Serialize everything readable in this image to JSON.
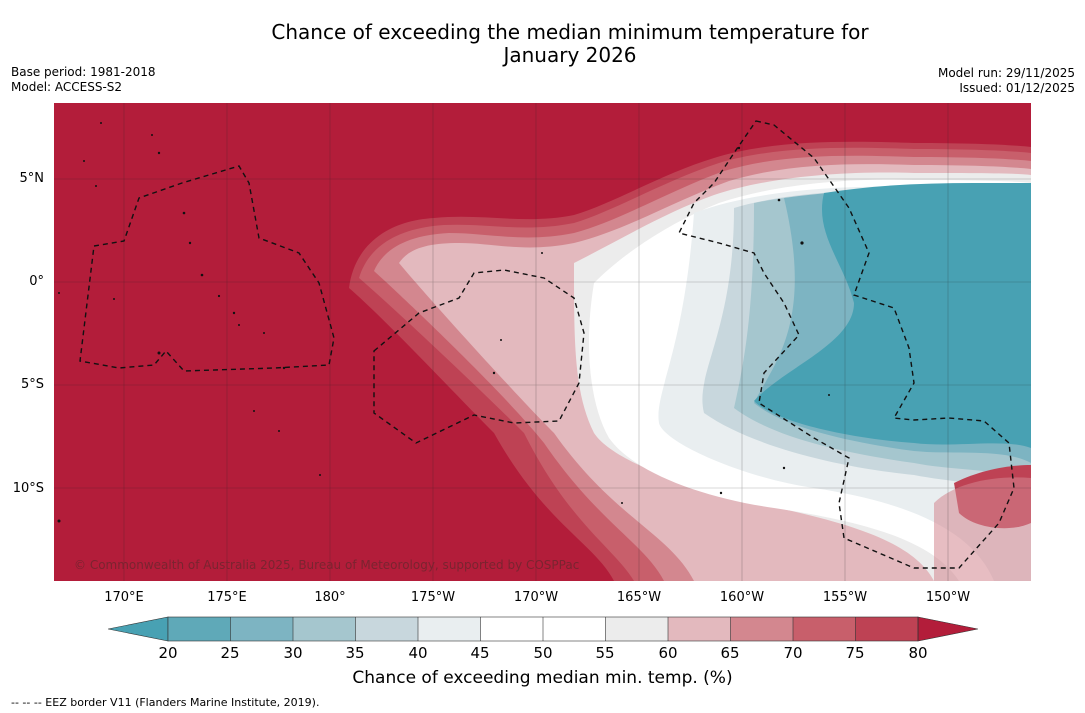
{
  "header": {
    "title_line1": "Chance of exceeding the median minimum temperature for",
    "title_line2": "January 2026",
    "base_period": "Base period: 1981-2018",
    "model": "Model: ACCESS-S2",
    "model_run": "Model run: 29/11/2025",
    "issued": "Issued: 01/12/2025"
  },
  "map": {
    "lat_labels": [
      "5°N",
      "0°",
      "5°S",
      "10°S"
    ],
    "lon_labels": [
      "170°E",
      "175°E",
      "180°",
      "175°W",
      "170°W",
      "165°W",
      "160°W",
      "155°W",
      "150°W"
    ],
    "copyright": "© Commonwealth of Australia 2025, Bureau of Meteorology, supported by COSPPac",
    "colors": {
      "c20": "#5fa9b8",
      "c25": "#7db4c2",
      "c30": "#a5c6ce",
      "c35": "#c8d7dd",
      "c40": "#e9eef0",
      "c45": "#ffffff",
      "c50": "#ffffff",
      "c55": "#ececec",
      "c60": "#e3b9be",
      "c65": "#d3878f",
      "c70": "#c85f6b",
      "c75": "#be4254",
      "c80": "#b31d3a",
      "below20": "#48a1b3"
    }
  },
  "colorbar": {
    "ticks": [
      "20",
      "25",
      "30",
      "35",
      "40",
      "45",
      "50",
      "55",
      "60",
      "65",
      "70",
      "75",
      "80"
    ],
    "label": "Chance of exceeding median min. temp. (%)"
  },
  "footer": {
    "legend": "--  --  -- EEZ border V11 (Flanders Marine Institute, 2019)."
  }
}
